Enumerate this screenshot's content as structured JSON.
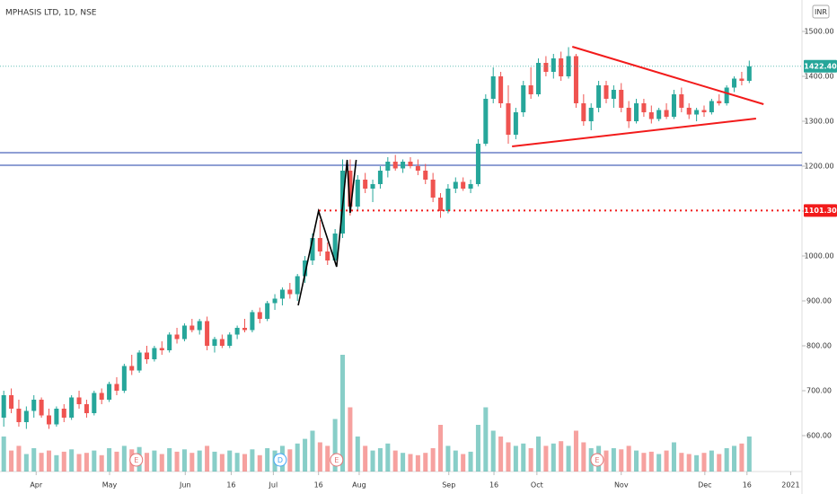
{
  "chart_data": {
    "type": "candlestick",
    "title": "MPHASIS LTD, 1D, NSE",
    "currency": "INR",
    "up_color": "#26a69a",
    "down_color": "#ef5350",
    "ohlc": [
      [
        640,
        700,
        620,
        690
      ],
      [
        690,
        705,
        650,
        660
      ],
      [
        660,
        680,
        620,
        630
      ],
      [
        630,
        665,
        615,
        655
      ],
      [
        655,
        690,
        640,
        680
      ],
      [
        680,
        685,
        640,
        645
      ],
      [
        645,
        660,
        615,
        625
      ],
      [
        625,
        665,
        620,
        660
      ],
      [
        660,
        670,
        630,
        640
      ],
      [
        640,
        690,
        635,
        685
      ],
      [
        685,
        700,
        660,
        670
      ],
      [
        670,
        680,
        640,
        650
      ],
      [
        650,
        700,
        645,
        695
      ],
      [
        695,
        705,
        670,
        680
      ],
      [
        680,
        720,
        675,
        715
      ],
      [
        715,
        730,
        690,
        700
      ],
      [
        700,
        760,
        695,
        755
      ],
      [
        755,
        780,
        735,
        745
      ],
      [
        745,
        790,
        740,
        785
      ],
      [
        785,
        800,
        760,
        770
      ],
      [
        770,
        800,
        765,
        795
      ],
      [
        795,
        810,
        780,
        790
      ],
      [
        790,
        830,
        785,
        825
      ],
      [
        825,
        840,
        805,
        815
      ],
      [
        815,
        850,
        810,
        845
      ],
      [
        845,
        860,
        830,
        835
      ],
      [
        835,
        860,
        825,
        855
      ],
      [
        855,
        865,
        790,
        800
      ],
      [
        800,
        820,
        785,
        815
      ],
      [
        815,
        825,
        795,
        800
      ],
      [
        800,
        830,
        795,
        825
      ],
      [
        825,
        845,
        815,
        840
      ],
      [
        840,
        860,
        830,
        835
      ],
      [
        835,
        880,
        830,
        875
      ],
      [
        875,
        885,
        850,
        860
      ],
      [
        860,
        900,
        855,
        895
      ],
      [
        895,
        915,
        880,
        905
      ],
      [
        905,
        930,
        890,
        925
      ],
      [
        925,
        940,
        905,
        915
      ],
      [
        915,
        960,
        900,
        955
      ],
      [
        955,
        1000,
        940,
        990
      ],
      [
        990,
        1050,
        980,
        1040
      ],
      [
        1040,
        1080,
        1000,
        1010
      ],
      [
        1010,
        1030,
        980,
        990
      ],
      [
        990,
        1060,
        985,
        1050
      ],
      [
        1050,
        1215,
        1040,
        1190
      ],
      [
        1190,
        1215,
        1090,
        1110
      ],
      [
        1110,
        1180,
        1100,
        1170
      ],
      [
        1170,
        1185,
        1140,
        1150
      ],
      [
        1150,
        1170,
        1120,
        1160
      ],
      [
        1160,
        1200,
        1150,
        1190
      ],
      [
        1190,
        1220,
        1175,
        1210
      ],
      [
        1210,
        1225,
        1190,
        1195
      ],
      [
        1195,
        1215,
        1185,
        1210
      ],
      [
        1210,
        1220,
        1195,
        1200
      ],
      [
        1200,
        1215,
        1180,
        1190
      ],
      [
        1190,
        1205,
        1160,
        1170
      ],
      [
        1170,
        1185,
        1120,
        1130
      ],
      [
        1130,
        1140,
        1085,
        1100
      ],
      [
        1100,
        1160,
        1095,
        1150
      ],
      [
        1150,
        1175,
        1140,
        1165
      ],
      [
        1165,
        1175,
        1145,
        1150
      ],
      [
        1150,
        1170,
        1140,
        1160
      ],
      [
        1160,
        1260,
        1155,
        1250
      ],
      [
        1250,
        1360,
        1245,
        1350
      ],
      [
        1350,
        1420,
        1340,
        1400
      ],
      [
        1400,
        1410,
        1330,
        1340
      ],
      [
        1340,
        1380,
        1250,
        1270
      ],
      [
        1270,
        1330,
        1260,
        1320
      ],
      [
        1320,
        1390,
        1310,
        1380
      ],
      [
        1380,
        1420,
        1350,
        1360
      ],
      [
        1360,
        1440,
        1355,
        1430
      ],
      [
        1430,
        1445,
        1400,
        1410
      ],
      [
        1410,
        1450,
        1395,
        1440
      ],
      [
        1440,
        1455,
        1390,
        1400
      ],
      [
        1400,
        1465,
        1395,
        1445
      ],
      [
        1445,
        1450,
        1330,
        1340
      ],
      [
        1340,
        1360,
        1290,
        1300
      ],
      [
        1300,
        1340,
        1280,
        1330
      ],
      [
        1330,
        1390,
        1320,
        1380
      ],
      [
        1380,
        1390,
        1340,
        1350
      ],
      [
        1350,
        1380,
        1330,
        1370
      ],
      [
        1370,
        1385,
        1320,
        1330
      ],
      [
        1330,
        1345,
        1285,
        1300
      ],
      [
        1300,
        1350,
        1295,
        1340
      ],
      [
        1340,
        1350,
        1310,
        1320
      ],
      [
        1320,
        1335,
        1295,
        1305
      ],
      [
        1305,
        1330,
        1300,
        1325
      ],
      [
        1325,
        1340,
        1305,
        1310
      ],
      [
        1310,
        1370,
        1305,
        1360
      ],
      [
        1360,
        1375,
        1320,
        1330
      ],
      [
        1330,
        1340,
        1305,
        1315
      ],
      [
        1315,
        1330,
        1300,
        1325
      ],
      [
        1325,
        1335,
        1310,
        1320
      ],
      [
        1320,
        1350,
        1315,
        1345
      ],
      [
        1345,
        1360,
        1335,
        1340
      ],
      [
        1340,
        1380,
        1335,
        1375
      ],
      [
        1375,
        1400,
        1365,
        1395
      ],
      [
        1395,
        1410,
        1380,
        1390
      ],
      [
        1390,
        1435,
        1385,
        1422.4
      ]
    ],
    "volume": [
      30,
      18,
      22,
      15,
      20,
      16,
      18,
      14,
      17,
      19,
      15,
      16,
      18,
      14,
      20,
      17,
      22,
      19,
      21,
      16,
      18,
      15,
      20,
      17,
      19,
      16,
      18,
      22,
      17,
      15,
      18,
      16,
      15,
      19,
      14,
      20,
      18,
      22,
      19,
      24,
      28,
      35,
      25,
      22,
      45,
      100,
      55,
      30,
      22,
      18,
      20,
      24,
      18,
      16,
      15,
      14,
      16,
      20,
      40,
      22,
      18,
      15,
      17,
      40,
      55,
      35,
      30,
      25,
      22,
      24,
      20,
      30,
      22,
      24,
      26,
      22,
      35,
      25,
      20,
      22,
      18,
      20,
      19,
      22,
      18,
      16,
      17,
      15,
      18,
      25,
      16,
      15,
      14,
      16,
      18,
      15,
      20,
      22,
      24,
      30
    ],
    "xlim": [
      -0.5,
      106
    ],
    "ylim": [
      520,
      1570
    ],
    "xticks": [
      {
        "value": 4.3,
        "label": "Apr"
      },
      {
        "value": 14.05,
        "label": "May"
      },
      {
        "value": 24.1,
        "label": "Jun"
      },
      {
        "value": 30.2,
        "label": "16"
      },
      {
        "value": 35.8,
        "label": "Jul"
      },
      {
        "value": 41.8,
        "label": "16"
      },
      {
        "value": 47.2,
        "label": "Aug"
      },
      {
        "value": 59.1,
        "label": "Sep"
      },
      {
        "value": 65.1,
        "label": "16"
      },
      {
        "value": 70.8,
        "label": "Oct"
      },
      {
        "value": 82,
        "label": "Nov"
      },
      {
        "value": 93.1,
        "label": "Dec"
      },
      {
        "value": 98.7,
        "label": "16"
      },
      {
        "value": 104.5,
        "label": "2021"
      }
    ],
    "yticks": [
      {
        "value": 600,
        "label": "600.00"
      },
      {
        "value": 700,
        "label": "700.00"
      },
      {
        "value": 800,
        "label": "800.00"
      },
      {
        "value": 900,
        "label": "900.00"
      },
      {
        "value": 1000,
        "label": "1000.00"
      },
      {
        "value": 1100,
        "label": "1100.00"
      },
      {
        "value": 1200,
        "label": "1200.00"
      },
      {
        "value": 1300,
        "label": "1300.00"
      },
      {
        "value": 1400,
        "label": "1400.00"
      },
      {
        "value": 1500,
        "label": "1500.00"
      }
    ],
    "price_lines": [
      {
        "value": 1422.4,
        "label": "1422.40",
        "color": "#26a69a"
      },
      {
        "value": 1101.3,
        "label": "1101.30",
        "color": "#f21b1b"
      }
    ],
    "hlines": [
      {
        "value": 1230,
        "color": "#1f3fa8"
      },
      {
        "value": 1202,
        "color": "#1f3fa8"
      }
    ],
    "drawings": [
      {
        "color": "#000000",
        "points": [
          [
            39.1,
            890
          ],
          [
            41.8,
            1100
          ],
          [
            44.2,
            976
          ],
          [
            45.6,
            1214
          ],
          [
            46,
            1096
          ],
          [
            46.8,
            1214
          ]
        ]
      },
      {
        "color": "#f21b1b",
        "points": [
          [
            75.5,
            1466
          ],
          [
            100.9,
            1338
          ]
        ]
      },
      {
        "color": "#f21b1b",
        "points": [
          [
            67.5,
            1244
          ],
          [
            99.9,
            1306
          ]
        ]
      }
    ],
    "events": [
      {
        "label": "E",
        "x": 17.6,
        "color": "#e57373"
      },
      {
        "label": "D",
        "x": 36.7,
        "color": "#42a5f5"
      },
      {
        "label": "E",
        "x": 44.2,
        "color": "#e57373"
      },
      {
        "label": "E",
        "x": 78.8,
        "color": "#e57373"
      }
    ]
  }
}
